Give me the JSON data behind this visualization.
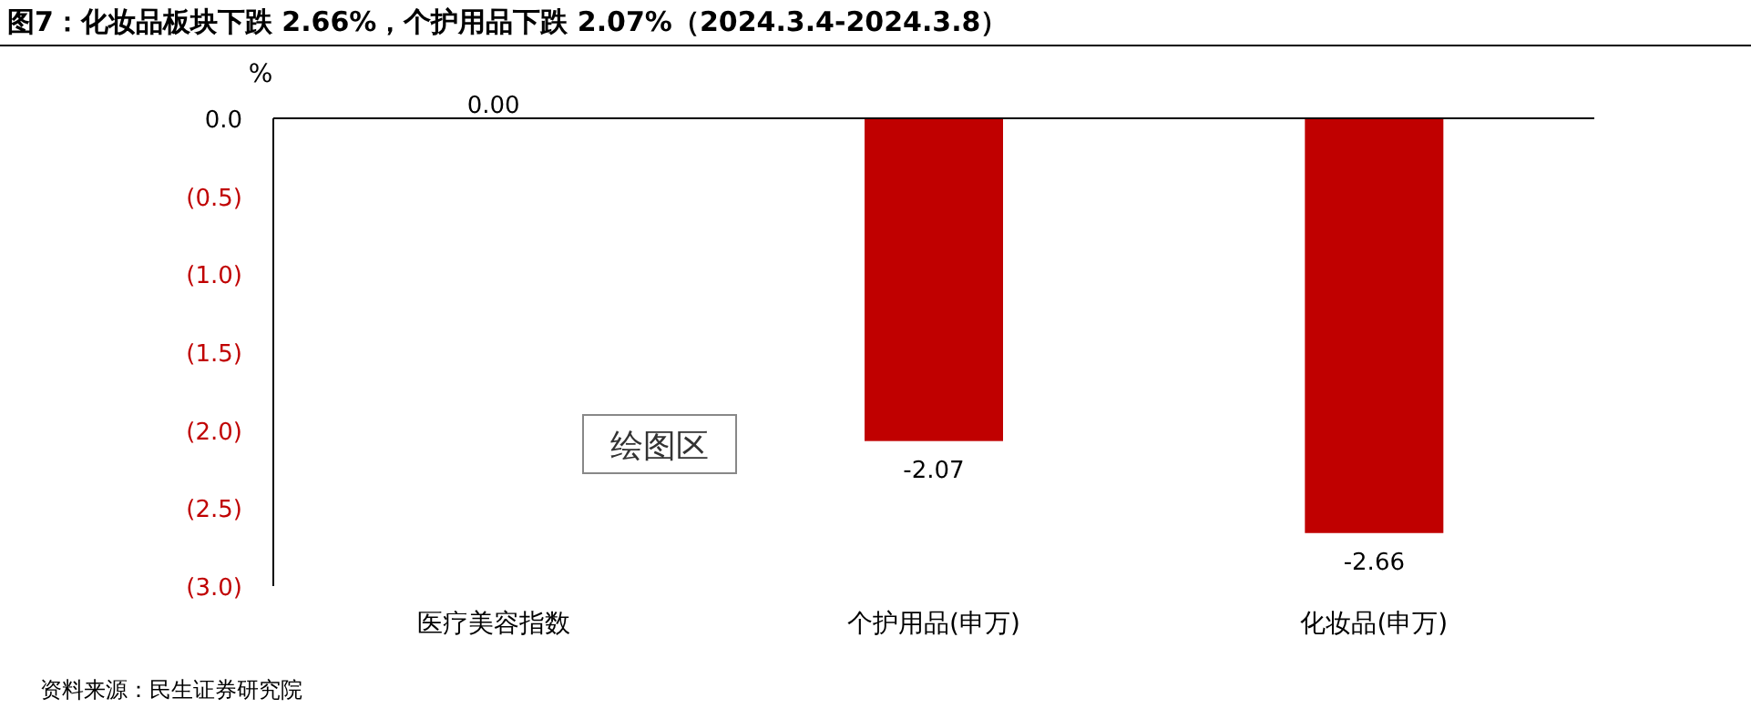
{
  "chart_data": {
    "type": "bar",
    "title": "图7：化妆品板块下跌 2.66%，个护用品下跌 2.07%（2024.3.4-2024.3.8）",
    "ylabel": "%",
    "categories": [
      "医疗美容指数",
      "个护用品(申万)",
      "化妆品(申万)"
    ],
    "values": [
      0.0,
      -2.07,
      -2.66
    ],
    "value_labels": [
      "0.00",
      "-2.07",
      "-2.66"
    ],
    "color": "#c00000",
    "ylim": [
      -3,
      0
    ],
    "yticks": [
      {
        "value": 0,
        "label": "0.0"
      },
      {
        "value": -0.5,
        "label": "(0.5)"
      },
      {
        "value": -1,
        "label": "(1.0)"
      },
      {
        "value": -1.5,
        "label": "(1.5)"
      },
      {
        "value": -2,
        "label": "(2.0)"
      },
      {
        "value": -2.5,
        "label": "(2.5)"
      },
      {
        "value": -3,
        "label": "(3.0)"
      }
    ],
    "grid": false,
    "annotations": [
      "绘图区",
      "资料来源：民生证券研究院"
    ]
  }
}
